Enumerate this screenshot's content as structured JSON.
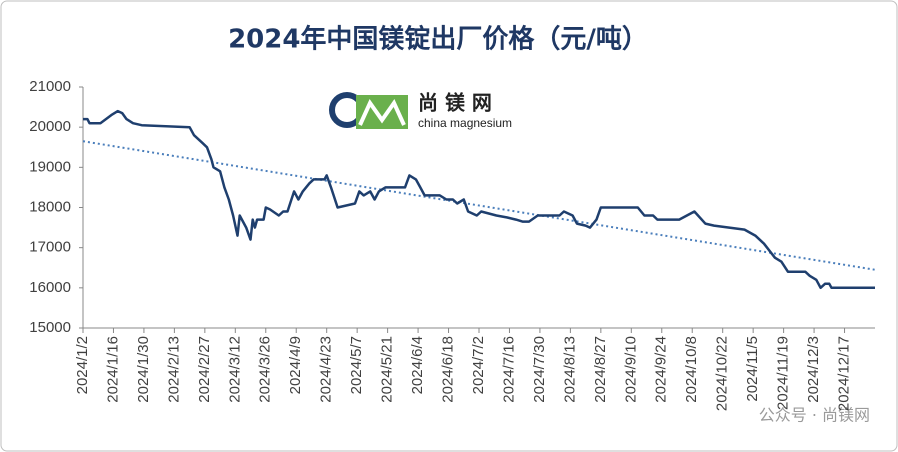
{
  "chart_data": {
    "type": "line",
    "title": "2024年中国镁锭出厂价格（元/吨）",
    "x": [
      "2024/1/2",
      "2024/1/4",
      "2024/1/5",
      "2024/1/10",
      "2024/1/15",
      "2024/1/18",
      "2024/1/20",
      "2024/1/22",
      "2024/1/25",
      "2024/1/29",
      "2024/2/20",
      "2024/2/22",
      "2024/2/26",
      "2024/2/28",
      "2024/3/1",
      "2024/3/2",
      "2024/3/5",
      "2024/3/7",
      "2024/3/9",
      "2024/3/11",
      "2024/3/13",
      "2024/3/14",
      "2024/3/17",
      "2024/3/19",
      "2024/3/20",
      "2024/3/21",
      "2024/3/22",
      "2024/3/25",
      "2024/3/26",
      "2024/3/28",
      "2024/4/1",
      "2024/4/3",
      "2024/4/5",
      "2024/4/8",
      "2024/4/10",
      "2024/4/12",
      "2024/4/15",
      "2024/4/17",
      "2024/4/22",
      "2024/4/23",
      "2024/4/25",
      "2024/4/28",
      "2024/5/6",
      "2024/5/8",
      "2024/5/10",
      "2024/5/13",
      "2024/5/15",
      "2024/5/17",
      "2024/5/20",
      "2024/5/29",
      "2024/5/31",
      "2024/6/3",
      "2024/6/5",
      "2024/6/7",
      "2024/6/14",
      "2024/6/17",
      "2024/6/20",
      "2024/6/22",
      "2024/6/25",
      "2024/6/27",
      "2024/7/1",
      "2024/7/3",
      "2024/7/10",
      "2024/7/15",
      "2024/7/19",
      "2024/7/22",
      "2024/7/25",
      "2024/7/29",
      "2024/8/8",
      "2024/8/10",
      "2024/8/14",
      "2024/8/16",
      "2024/8/20",
      "2024/8/22",
      "2024/8/25",
      "2024/8/27",
      "2024/9/13",
      "2024/9/16",
      "2024/9/20",
      "2024/9/22",
      "2024/10/2",
      "2024/10/9",
      "2024/10/14",
      "2024/10/18",
      "2024/10/25",
      "2024/11/1",
      "2024/11/6",
      "2024/11/10",
      "2024/11/15",
      "2024/11/18",
      "2024/11/21",
      "2024/11/29",
      "2024/12/1",
      "2024/12/4",
      "2024/12/6",
      "2024/12/8",
      "2024/12/10",
      "2024/12/11",
      "2024/12/31"
    ],
    "series": [
      {
        "color": "#1f3f6e",
        "values": [
          20200,
          20200,
          20100,
          20100,
          20300,
          20400,
          20350,
          20200,
          20100,
          20050,
          20000,
          19800,
          19600,
          19500,
          19200,
          19000,
          18900,
          18500,
          18200,
          17800,
          17300,
          17800,
          17500,
          17200,
          17700,
          17500,
          17700,
          17700,
          18000,
          17950,
          17800,
          17900,
          17900,
          18400,
          18200,
          18400,
          18600,
          18700,
          18700,
          18800,
          18500,
          18000,
          18100,
          18400,
          18300,
          18400,
          18200,
          18400,
          18500,
          18500,
          18800,
          18700,
          18500,
          18300,
          18300,
          18200,
          18200,
          18100,
          18200,
          17900,
          17800,
          17900,
          17800,
          17750,
          17700,
          17650,
          17650,
          17800,
          17800,
          17900,
          17800,
          17600,
          17550,
          17500,
          17700,
          18000,
          18000,
          17800,
          17800,
          17700,
          17700,
          17900,
          17600,
          17550,
          17500,
          17450,
          17300,
          17100,
          16750,
          16650,
          16400,
          16400,
          16300,
          16200,
          16000,
          16100,
          16100,
          16000,
          16000
        ]
      }
    ],
    "trendline": {
      "x": [
        "2024/1/2",
        "2024/12/31"
      ],
      "values": [
        19650,
        16450
      ],
      "color": "#4a7ebb"
    },
    "xlim": [
      "2024/1/2",
      "2024/12/31"
    ],
    "xticks": [
      "2024/1/2",
      "2024/1/16",
      "2024/1/30",
      "2024/2/13",
      "2024/2/27",
      "2024/3/12",
      "2024/3/26",
      "2024/4/9",
      "2024/4/23",
      "2024/5/7",
      "2024/5/21",
      "2024/6/4",
      "2024/6/18",
      "2024/7/2",
      "2024/7/16",
      "2024/7/30",
      "2024/8/13",
      "2024/8/27",
      "2024/9/10",
      "2024/9/24",
      "2024/10/8",
      "2024/10/22",
      "2024/11/5",
      "2024/11/19",
      "2024/12/3",
      "2024/12/17"
    ],
    "ylim": [
      15000,
      21000
    ],
    "yticks": [
      15000,
      16000,
      17000,
      18000,
      19000,
      20000,
      21000
    ],
    "grid": false,
    "logo": {
      "name": "尚 镁 网",
      "tagline": "china magnesium"
    },
    "watermark": "公众号 · 尚镁网"
  }
}
